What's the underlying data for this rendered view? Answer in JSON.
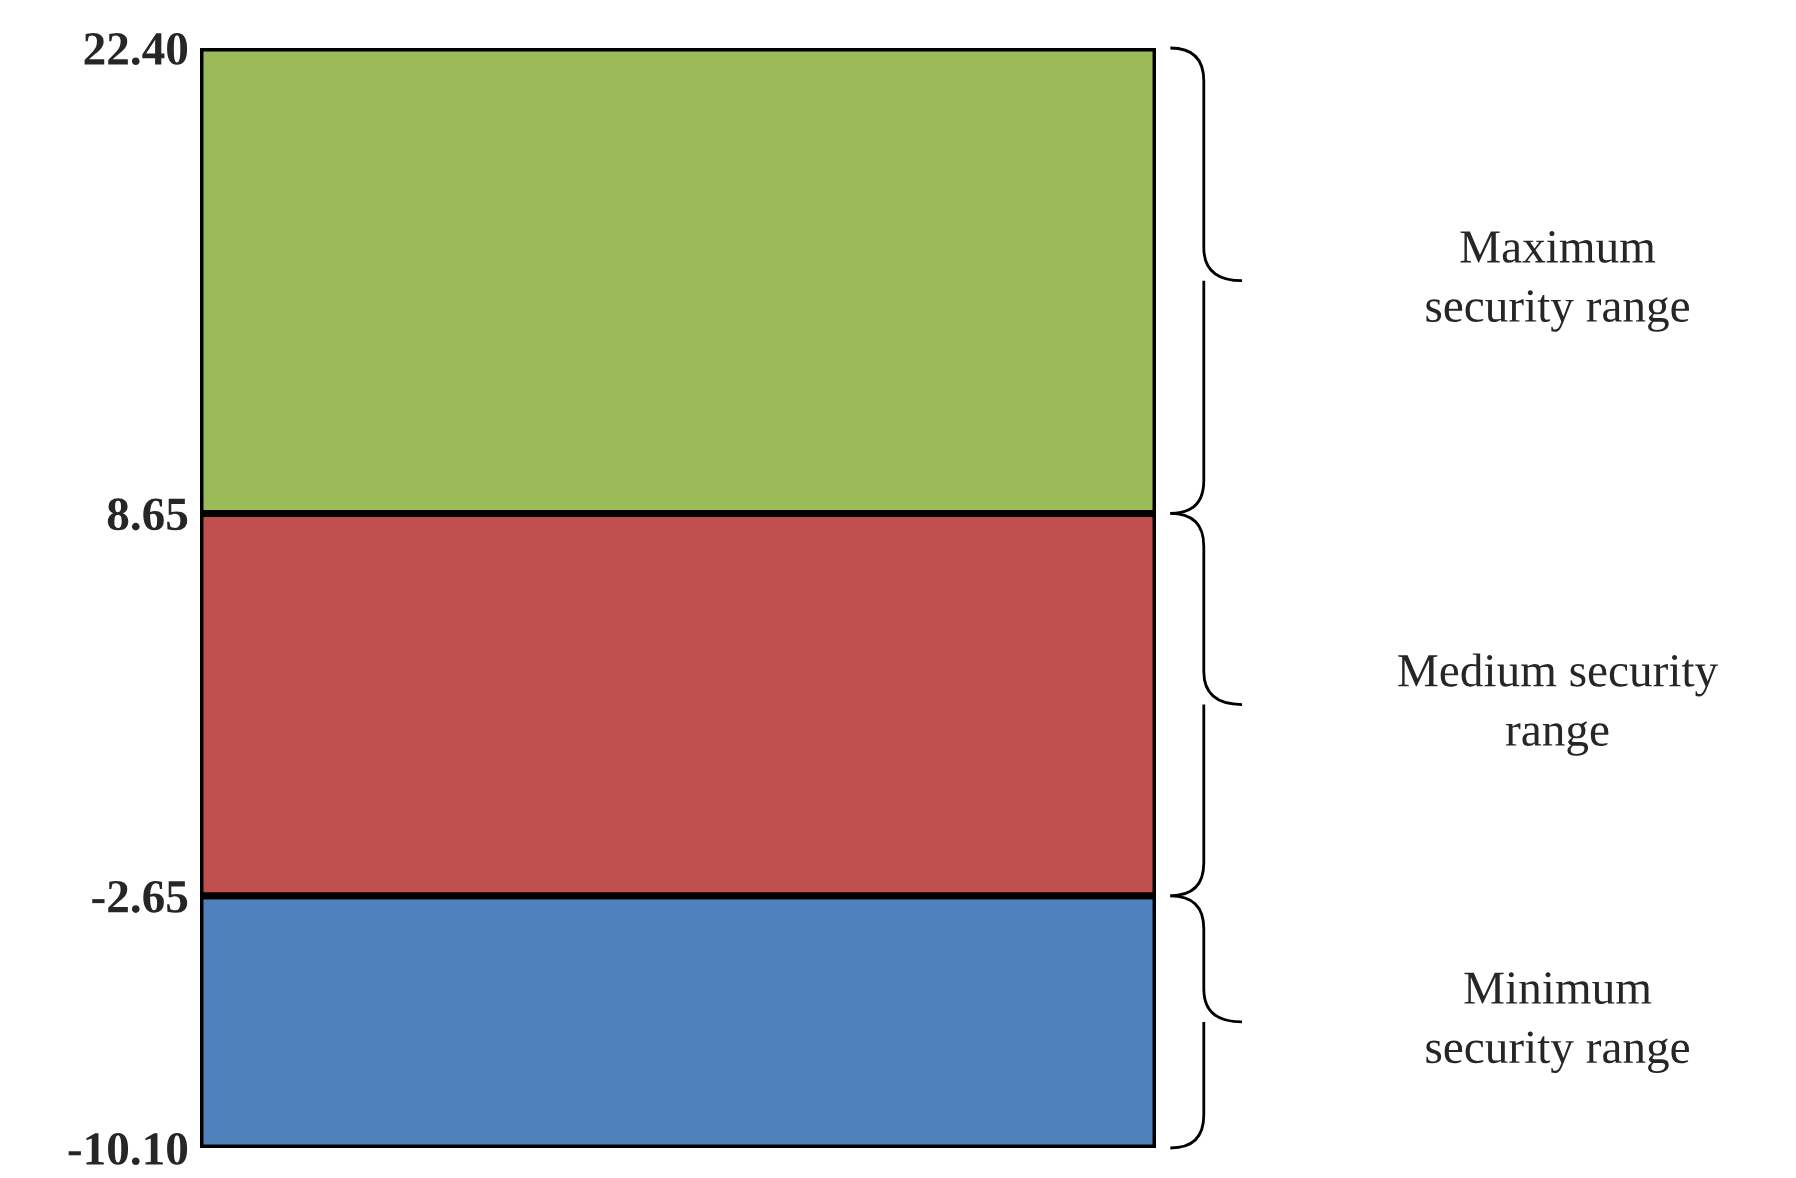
{
  "chart_data": {
    "type": "bar",
    "categories": [
      null
    ],
    "series": [
      {
        "name": "Minimum\nsecurity range",
        "color": "#4f81bd",
        "base": [
          -10.1
        ],
        "values": [
          7.45
        ]
      },
      {
        "name": "Medium security\nrange",
        "color": "#c0504d",
        "base": [
          -2.65
        ],
        "values": [
          11.3
        ]
      },
      {
        "name": "Maximum\nsecurity range",
        "color": "#9bbb59",
        "base": [
          8.65
        ],
        "values": [
          13.75
        ]
      }
    ],
    "ylim": [
      -10.1,
      22.4
    ],
    "yticks": [
      {
        "value": -10.1,
        "label": "-10.10"
      },
      {
        "value": -2.65,
        "label": "-2.65"
      },
      {
        "value": 8.65,
        "label": "8.65"
      },
      {
        "value": 22.4,
        "label": "22.40"
      }
    ]
  }
}
